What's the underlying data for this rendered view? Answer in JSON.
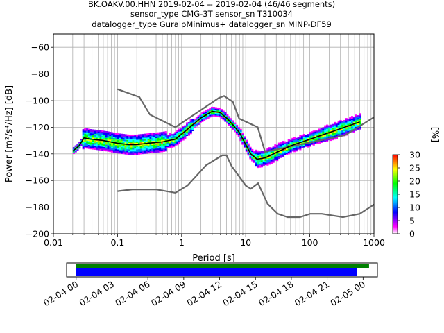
{
  "title": {
    "line1": "BK.OAKV.00.HHN   2019-02-04 -- 2019-02-04  (46/46 segments)",
    "line2": "sensor_type CMG-3T sensor_sn T310034",
    "line3": "datalogger_type GuralpMinimus+ datalogger_sn MINP-DF59"
  },
  "colors": {
    "mean_line": "#000000",
    "noise_models": "#666666",
    "grid": "#b0b0b0",
    "coverage_data": "#0000ff",
    "coverage_gaps": "#008000"
  },
  "chart_data": [
    {
      "type": "heatmap",
      "name": "ppsd",
      "title": "BK.OAKV.00.HHN   2019-02-04 -- 2019-02-04  (46/46 segments)",
      "xlabel": "Period [s]",
      "ylabel": "Power [m²/s⁴/Hz] [dB]",
      "xscale": "log",
      "xlim": [
        0.01,
        1000
      ],
      "ylim": [
        -200,
        -50
      ],
      "xticks": [
        0.01,
        0.1,
        1,
        10,
        100,
        1000
      ],
      "xtick_labels": [
        "0.01",
        "0.1",
        "1",
        "10",
        "100",
        "1000"
      ],
      "yticks": [
        -200,
        -180,
        -160,
        -140,
        -120,
        -100,
        -80,
        -60
      ],
      "ytick_labels": [
        "−200",
        "−180",
        "−160",
        "−140",
        "−120",
        "−100",
        "−80",
        "−60"
      ],
      "grid": true,
      "colorbar": {
        "label": "[%]",
        "range": [
          0,
          30
        ],
        "ticks": [
          0,
          5,
          10,
          15,
          20,
          25,
          30
        ],
        "tick_labels": [
          "0",
          "5",
          "10",
          "15",
          "20",
          "25",
          "30"
        ],
        "colors": [
          "#ffffff",
          "#ff00ff",
          "#7f00ff",
          "#0000ff",
          "#007fff",
          "#00ffff",
          "#00ff7f",
          "#00ff00",
          "#7fff00",
          "#ffff00",
          "#ff7f00",
          "#ff0000"
        ]
      },
      "series": [
        {
          "name": "mean PSD",
          "x": [
            0.02,
            0.025,
            0.03,
            0.04,
            0.06,
            0.1,
            0.15,
            0.2,
            0.3,
            0.5,
            0.8,
            1.2,
            2,
            3,
            4,
            5,
            6,
            8,
            10,
            12,
            15,
            20,
            30,
            50,
            100,
            200,
            400,
            600
          ],
          "y": [
            -138,
            -134,
            -128,
            -129,
            -130,
            -132,
            -133,
            -133,
            -132,
            -131,
            -129,
            -122,
            -113,
            -108,
            -109,
            -113,
            -117,
            -124,
            -133,
            -140,
            -144,
            -143,
            -139,
            -134,
            -129,
            -124,
            -119,
            -116
          ]
        },
        {
          "name": "high noise model",
          "x": [
            0.1,
            0.22,
            0.32,
            0.8,
            3.8,
            4.6,
            6.3,
            7.9,
            15.4,
            20,
            354.8,
            1000
          ],
          "y": [
            -91.5,
            -97.4,
            -110.5,
            -120,
            -98,
            -96.5,
            -101,
            -113.5,
            -120,
            -138.5,
            -126,
            -112.5
          ]
        },
        {
          "name": "low noise model",
          "x": [
            0.1,
            0.17,
            0.4,
            0.8,
            1.24,
            2.4,
            4.3,
            5,
            6,
            10,
            12,
            15.6,
            21.9,
            31.6,
            45,
            70,
            101,
            154,
            328,
            600,
            1000
          ],
          "y": [
            -168,
            -166.7,
            -166.7,
            -169.2,
            -163.7,
            -148.6,
            -141.1,
            -141.1,
            -149,
            -163.8,
            -166.2,
            -162.1,
            -177.5,
            -185,
            -187.5,
            -187.5,
            -185,
            -185,
            -187.5,
            -185,
            -178
          ]
        }
      ]
    },
    {
      "type": "bar",
      "name": "data-coverage",
      "orientation": "horizontal",
      "x_range": [
        "2019-02-04 00",
        "2019-02-05 01"
      ],
      "xtick_labels": [
        "02-04 00",
        "02-04 03",
        "02-04 06",
        "02-04 09",
        "02-04 12",
        "02-04 15",
        "02-04 18",
        "02-04 21",
        "02-05 00"
      ],
      "series": [
        {
          "name": "coverage",
          "start": "02-04 00:00",
          "end": "02-05 00:30"
        },
        {
          "name": "used segments",
          "start": "02-04 00:00",
          "end": "02-04 23:30"
        }
      ]
    }
  ]
}
